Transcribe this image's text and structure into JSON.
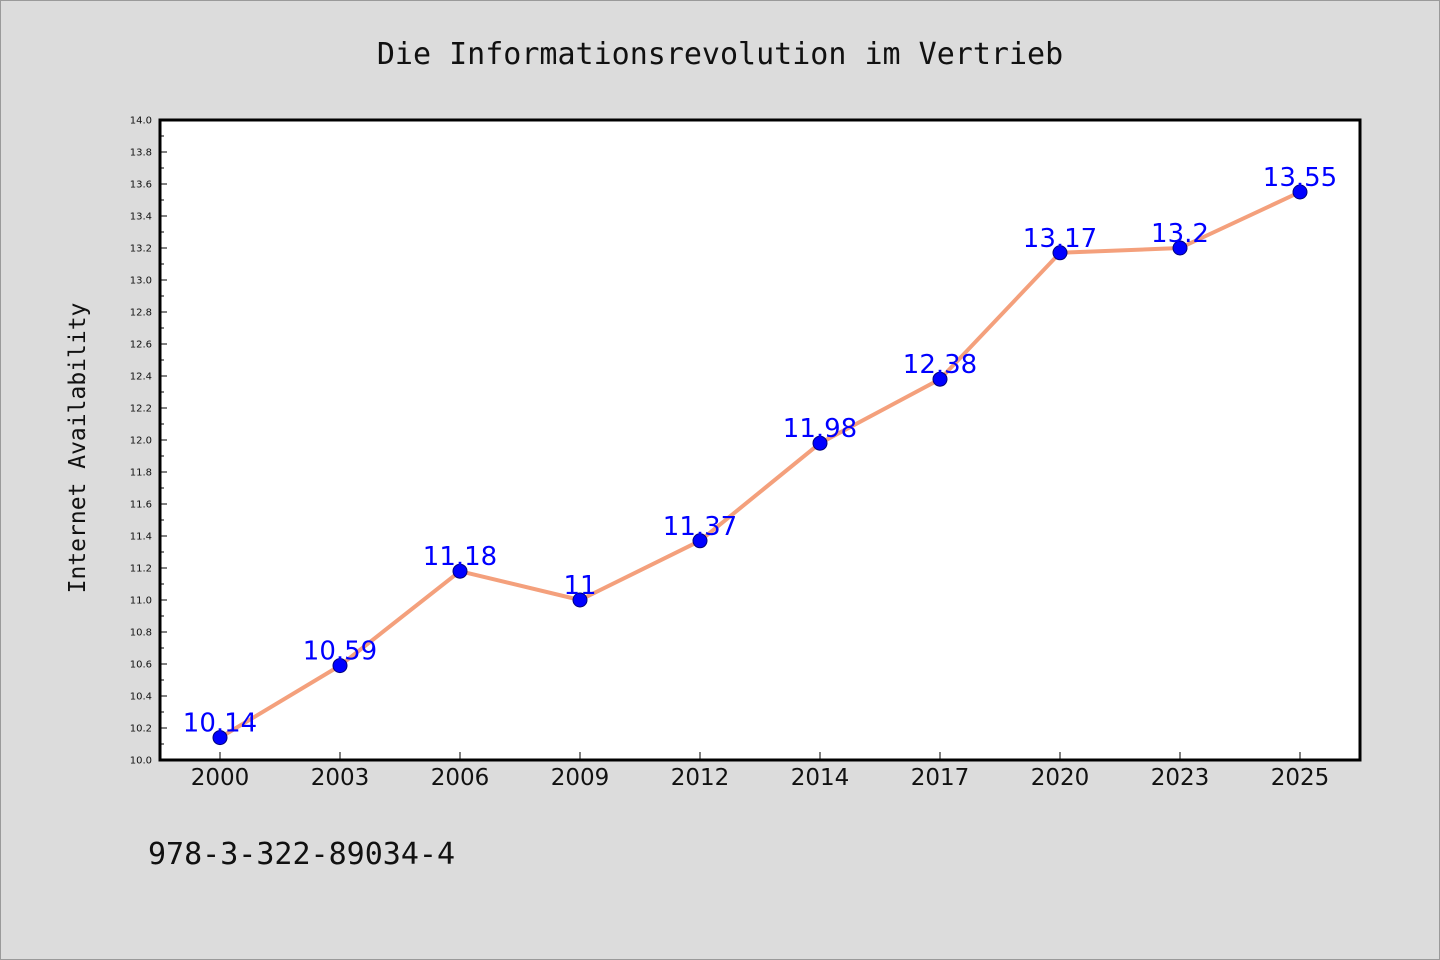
{
  "chart_data": {
    "type": "line",
    "title": "Die Informationsrevolution im Vertrieb",
    "xlabel": "",
    "ylabel": "Internet Availability",
    "categories": [
      "2000",
      "2003",
      "2006",
      "2009",
      "2012",
      "2014",
      "2017",
      "2020",
      "2023",
      "2025"
    ],
    "values": [
      10.14,
      10.59,
      11.18,
      11,
      11.37,
      11.98,
      12.38,
      13.17,
      13.2,
      13.55
    ],
    "data_labels": [
      "10.14",
      "10.59",
      "11.18",
      "11",
      "11.37",
      "11.98",
      "12.38",
      "13.17",
      "13.2",
      "13.55"
    ],
    "ylim": [
      10.0,
      14.0
    ],
    "yticks": [
      "10.0",
      "10.2",
      "10.4",
      "10.6",
      "10.8",
      "11.0",
      "11.2",
      "11.4",
      "11.6",
      "11.8",
      "12.0",
      "12.2",
      "12.4",
      "12.6",
      "12.8",
      "13.0",
      "13.2",
      "13.4",
      "13.6",
      "13.8",
      "14.0"
    ],
    "grid": false,
    "legend": "none",
    "colors": {
      "line": "#f4a07c",
      "marker": "#0000ff",
      "labels": "#0000ff",
      "plot_background": "#ffffff",
      "page_background": "#dcdcdc"
    }
  },
  "footer": {
    "isbn": "978-3-322-89034-4"
  }
}
